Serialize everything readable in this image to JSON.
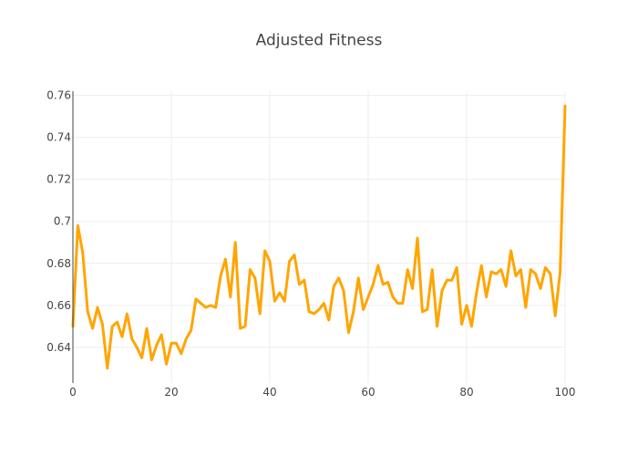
{
  "chart_data": {
    "type": "line",
    "title": "Adjusted Fitness",
    "xlabel": "",
    "ylabel": "",
    "xlim": [
      0,
      100
    ],
    "ylim": [
      0.623,
      0.762
    ],
    "x_ticks": [
      0,
      20,
      40,
      60,
      80,
      100
    ],
    "y_ticks": [
      0.64,
      0.66,
      0.68,
      0.7,
      0.72,
      0.74,
      0.76
    ],
    "y_tick_labels": [
      "0.64",
      "0.66",
      "0.68",
      "0.7",
      "0.72",
      "0.74",
      "0.76"
    ],
    "grid": true,
    "legend": "none",
    "series": [
      {
        "color": "#ffa500",
        "x": [
          0,
          1,
          2,
          3,
          4,
          5,
          6,
          7,
          8,
          9,
          10,
          11,
          12,
          13,
          14,
          15,
          16,
          17,
          18,
          19,
          20,
          21,
          22,
          23,
          24,
          25,
          26,
          27,
          28,
          29,
          30,
          31,
          32,
          33,
          34,
          35,
          36,
          37,
          38,
          39,
          40,
          41,
          42,
          43,
          44,
          45,
          46,
          47,
          48,
          49,
          50,
          51,
          52,
          53,
          54,
          55,
          56,
          57,
          58,
          59,
          60,
          61,
          62,
          63,
          64,
          65,
          66,
          67,
          68,
          69,
          70,
          71,
          72,
          73,
          74,
          75,
          76,
          77,
          78,
          79,
          80,
          81,
          82,
          83,
          84,
          85,
          86,
          87,
          88,
          89,
          90,
          91,
          92,
          93,
          94,
          95,
          96,
          97,
          98,
          99,
          100
        ],
        "values": [
          0.65,
          0.698,
          0.685,
          0.657,
          0.649,
          0.659,
          0.651,
          0.63,
          0.65,
          0.652,
          0.645,
          0.656,
          0.644,
          0.64,
          0.635,
          0.649,
          0.634,
          0.641,
          0.646,
          0.632,
          0.642,
          0.642,
          0.637,
          0.644,
          0.648,
          0.663,
          0.661,
          0.659,
          0.66,
          0.659,
          0.674,
          0.682,
          0.664,
          0.69,
          0.649,
          0.65,
          0.677,
          0.673,
          0.656,
          0.686,
          0.681,
          0.662,
          0.666,
          0.662,
          0.681,
          0.684,
          0.67,
          0.672,
          0.657,
          0.656,
          0.658,
          0.661,
          0.653,
          0.669,
          0.673,
          0.667,
          0.647,
          0.657,
          0.673,
          0.658,
          0.664,
          0.67,
          0.679,
          0.67,
          0.671,
          0.664,
          0.661,
          0.661,
          0.677,
          0.668,
          0.692,
          0.657,
          0.658,
          0.677,
          0.65,
          0.667,
          0.672,
          0.672,
          0.678,
          0.651,
          0.66,
          0.65,
          0.666,
          0.679,
          0.664,
          0.676,
          0.675,
          0.677,
          0.669,
          0.686,
          0.674,
          0.677,
          0.659,
          0.677,
          0.675,
          0.668,
          0.678,
          0.675,
          0.655,
          0.676,
          0.755
        ]
      }
    ]
  }
}
